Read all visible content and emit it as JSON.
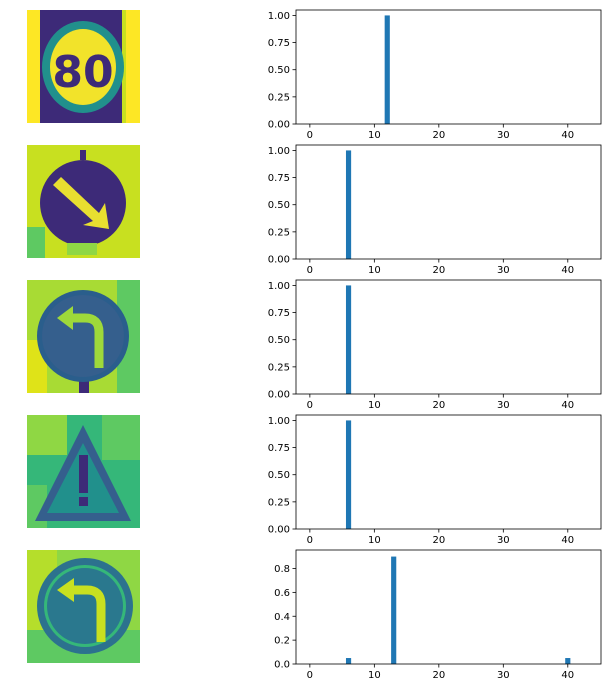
{
  "colors": {
    "bar": "#1f77b4",
    "viridis_dark": "#3d2a78",
    "viridis_blue": "#355f8d",
    "viridis_teal": "#21908c",
    "viridis_green": "#5ec962",
    "viridis_yellow": "#fde725",
    "lime": "#c8e020"
  },
  "images": [
    {
      "icon": "speed-limit-sign-icon",
      "text": "80"
    },
    {
      "icon": "keep-right-sign-icon"
    },
    {
      "icon": "turn-left-sign-icon"
    },
    {
      "icon": "general-caution-sign-icon"
    },
    {
      "icon": "turn-left-sign-icon"
    }
  ],
  "chart_data": [
    {
      "type": "bar",
      "xlim": [
        -2.15,
        45.15
      ],
      "ylim": [
        0,
        1.05
      ],
      "x_ticks": [
        {
          "v": 0,
          "label": "0"
        },
        {
          "v": 10,
          "label": "10"
        },
        {
          "v": 20,
          "label": "20"
        },
        {
          "v": 30,
          "label": "30"
        },
        {
          "v": 40,
          "label": "40"
        }
      ],
      "y_ticks": [
        {
          "v": 0,
          "label": "0.00"
        },
        {
          "v": 0.25,
          "label": "0.25"
        },
        {
          "v": 0.5,
          "label": "0.50"
        },
        {
          "v": 0.75,
          "label": "0.75"
        },
        {
          "v": 1.0,
          "label": "1.00"
        }
      ],
      "bars": [
        {
          "x": 12,
          "y": 1.0
        }
      ]
    },
    {
      "type": "bar",
      "xlim": [
        -2.15,
        45.15
      ],
      "ylim": [
        0,
        1.05
      ],
      "x_ticks": [
        {
          "v": 0,
          "label": "0"
        },
        {
          "v": 10,
          "label": "10"
        },
        {
          "v": 20,
          "label": "20"
        },
        {
          "v": 30,
          "label": "30"
        },
        {
          "v": 40,
          "label": "40"
        }
      ],
      "y_ticks": [
        {
          "v": 0,
          "label": "0.00"
        },
        {
          "v": 0.25,
          "label": "0.25"
        },
        {
          "v": 0.5,
          "label": "0.50"
        },
        {
          "v": 0.75,
          "label": "0.75"
        },
        {
          "v": 1.0,
          "label": "1.00"
        }
      ],
      "bars": [
        {
          "x": 6,
          "y": 1.0
        }
      ]
    },
    {
      "type": "bar",
      "xlim": [
        -2.15,
        45.15
      ],
      "ylim": [
        0,
        1.05
      ],
      "x_ticks": [
        {
          "v": 0,
          "label": "0"
        },
        {
          "v": 10,
          "label": "10"
        },
        {
          "v": 20,
          "label": "20"
        },
        {
          "v": 30,
          "label": "30"
        },
        {
          "v": 40,
          "label": "40"
        }
      ],
      "y_ticks": [
        {
          "v": 0,
          "label": "0.00"
        },
        {
          "v": 0.25,
          "label": "0.25"
        },
        {
          "v": 0.5,
          "label": "0.50"
        },
        {
          "v": 0.75,
          "label": "0.75"
        },
        {
          "v": 1.0,
          "label": "1.00"
        }
      ],
      "bars": [
        {
          "x": 6,
          "y": 1.0
        }
      ]
    },
    {
      "type": "bar",
      "xlim": [
        -2.15,
        45.15
      ],
      "ylim": [
        0,
        1.05
      ],
      "x_ticks": [
        {
          "v": 0,
          "label": "0"
        },
        {
          "v": 10,
          "label": "10"
        },
        {
          "v": 20,
          "label": "20"
        },
        {
          "v": 30,
          "label": "30"
        },
        {
          "v": 40,
          "label": "40"
        }
      ],
      "y_ticks": [
        {
          "v": 0,
          "label": "0.00"
        },
        {
          "v": 0.25,
          "label": "0.25"
        },
        {
          "v": 0.5,
          "label": "0.50"
        },
        {
          "v": 0.75,
          "label": "0.75"
        },
        {
          "v": 1.0,
          "label": "1.00"
        }
      ],
      "bars": [
        {
          "x": 6,
          "y": 1.0
        }
      ]
    },
    {
      "type": "bar",
      "xlim": [
        -2.15,
        45.15
      ],
      "ylim": [
        0,
        0.955
      ],
      "x_ticks": [
        {
          "v": 0,
          "label": "0"
        },
        {
          "v": 10,
          "label": "10"
        },
        {
          "v": 20,
          "label": "20"
        },
        {
          "v": 30,
          "label": "30"
        },
        {
          "v": 40,
          "label": "40"
        }
      ],
      "y_ticks": [
        {
          "v": 0,
          "label": "0.0"
        },
        {
          "v": 0.2,
          "label": "0.2"
        },
        {
          "v": 0.4,
          "label": "0.4"
        },
        {
          "v": 0.6,
          "label": "0.6"
        },
        {
          "v": 0.8,
          "label": "0.8"
        }
      ],
      "bars": [
        {
          "x": 6,
          "y": 0.05
        },
        {
          "x": 13,
          "y": 0.9
        },
        {
          "x": 40,
          "y": 0.05
        }
      ]
    }
  ]
}
